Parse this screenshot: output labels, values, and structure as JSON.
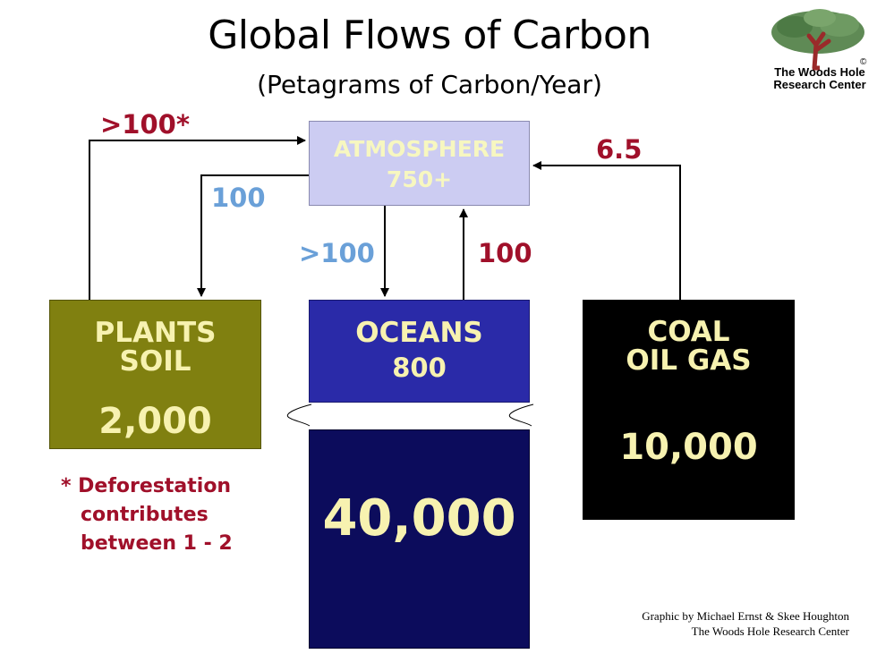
{
  "title": "Global Flows of Carbon",
  "subtitle": "(Petagrams of Carbon/Year)",
  "logo": {
    "icon": "tree-globe-icon",
    "line1": "The Woods Hole",
    "line2": "Research Center",
    "mark": "©"
  },
  "reservoirs": {
    "atmosphere": {
      "label": "ATMOSPHERE",
      "value": "750+"
    },
    "plants_soil": {
      "label_line1": "PLANTS",
      "label_line2": "SOIL",
      "value": "2,000"
    },
    "oceans": {
      "label": "OCEANS",
      "value": "800"
    },
    "deep_ocean": {
      "value": "40,000"
    },
    "fossil_fuels": {
      "label_line1": "COAL",
      "label_line2": "OIL GAS",
      "value": "10,000"
    }
  },
  "flows": {
    "plants_to_atmosphere": ">100*",
    "atmosphere_to_plants": "100",
    "atmosphere_to_oceans": ">100",
    "oceans_to_atmosphere": "100",
    "fossil_to_atmosphere": "6.5"
  },
  "footnote": {
    "line1": "* Deforestation",
    "line2": "contributes",
    "line3": "between 1 - 2"
  },
  "credit": {
    "line1": "Graphic by Michael Ernst & Skee Houghton",
    "line2": "The Woods Hole Research Center"
  },
  "colors": {
    "atmosphere": "#ccccf2",
    "plants_soil": "#808010",
    "oceans": "#2a2aa8",
    "deep_ocean": "#0c0c5c",
    "fossil_fuels": "#000000",
    "flow_red": "#a0102a",
    "flow_blue": "#6aa0d8"
  }
}
